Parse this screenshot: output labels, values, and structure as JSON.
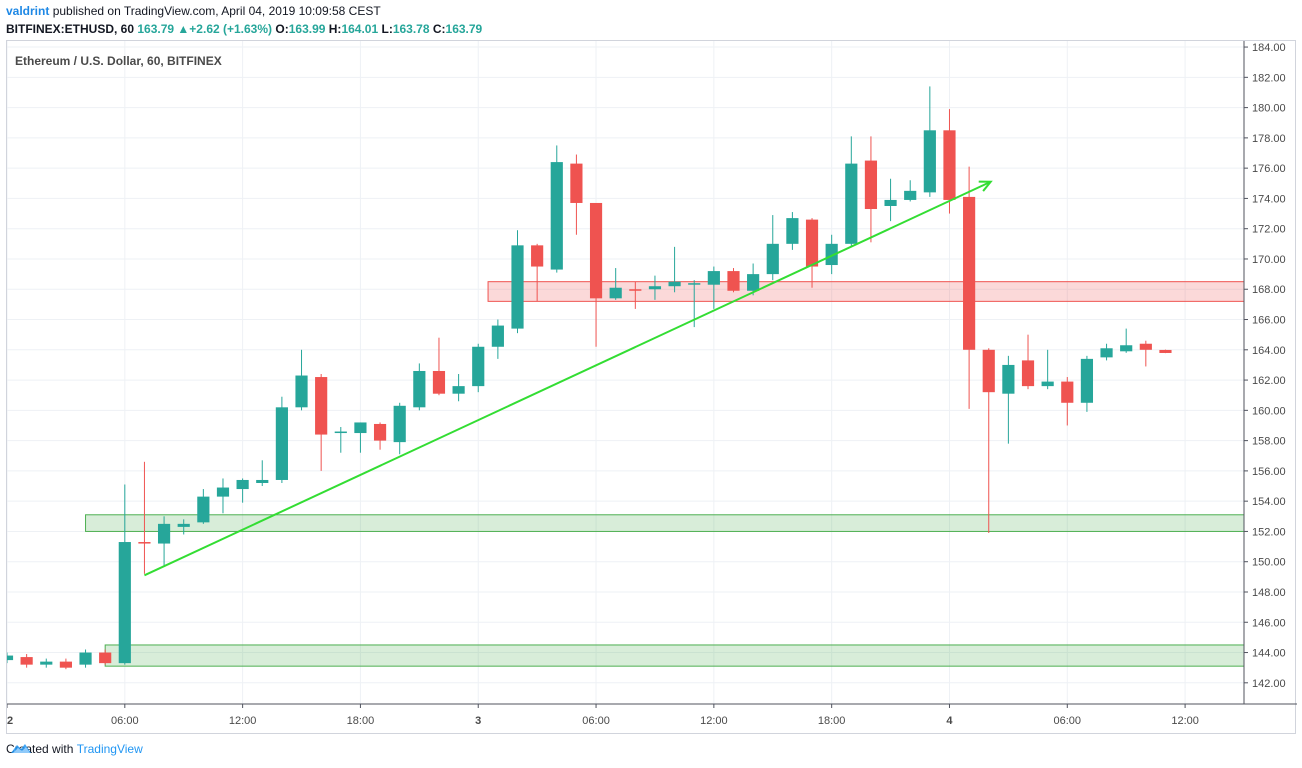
{
  "header": {
    "author": "valdrint",
    "published_text": "published on TradingView.com, April 04, 2019 10:09:58 CEST"
  },
  "ohlc_line": {
    "symbol": "BITFINEX:ETHUSD, 60",
    "last": "163.79",
    "change": "+2.62 (+1.63%)",
    "o_label": "O:",
    "o": "163.99",
    "h_label": "H:",
    "h": "164.01",
    "l_label": "L:",
    "l": "163.78",
    "c_label": "C:",
    "c": "163.79"
  },
  "footer": {
    "created_with": "Created with",
    "brand": "TradingView"
  },
  "colors": {
    "up": "#26a69a",
    "down": "#ef5350",
    "support": "#4caf50",
    "resistance": "#ef5350",
    "trend": "#33dd33"
  },
  "chart_data": {
    "type": "candlestick",
    "title": "Ethereum / U.S. Dollar, 60, BITFINEX",
    "ylim": [
      140.6,
      184.4
    ],
    "y_ticks": [
      142,
      144,
      146,
      148,
      150,
      152,
      154,
      156,
      158,
      160,
      162,
      164,
      166,
      168,
      170,
      172,
      174,
      176,
      178,
      180,
      182,
      184
    ],
    "x_range": [
      0,
      63
    ],
    "x_ticks": [
      {
        "i": 0,
        "label": "2"
      },
      {
        "i": 6,
        "label": "06:00"
      },
      {
        "i": 12,
        "label": "12:00"
      },
      {
        "i": 18,
        "label": "18:00"
      },
      {
        "i": 24,
        "label": "3"
      },
      {
        "i": 30,
        "label": "06:00"
      },
      {
        "i": 36,
        "label": "12:00"
      },
      {
        "i": 42,
        "label": "18:00"
      },
      {
        "i": 48,
        "label": "4"
      },
      {
        "i": 54,
        "label": "06:00"
      },
      {
        "i": 60,
        "label": "12:00"
      }
    ],
    "candles": [
      {
        "o": 143.5,
        "h": 144.0,
        "l": 143.3,
        "c": 143.8
      },
      {
        "o": 143.7,
        "h": 143.9,
        "l": 143.0,
        "c": 143.2
      },
      {
        "o": 143.2,
        "h": 143.6,
        "l": 143.0,
        "c": 143.4
      },
      {
        "o": 143.4,
        "h": 143.6,
        "l": 142.9,
        "c": 143.0
      },
      {
        "o": 143.2,
        "h": 144.2,
        "l": 143.0,
        "c": 144.0
      },
      {
        "o": 144.0,
        "h": 144.2,
        "l": 143.2,
        "c": 143.3
      },
      {
        "o": 143.3,
        "h": 155.1,
        "l": 143.2,
        "c": 151.3
      },
      {
        "o": 151.3,
        "h": 156.6,
        "l": 149.2,
        "c": 151.2
      },
      {
        "o": 151.2,
        "h": 153.0,
        "l": 149.7,
        "c": 152.5
      },
      {
        "o": 152.3,
        "h": 152.8,
        "l": 151.8,
        "c": 152.5
      },
      {
        "o": 152.6,
        "h": 154.8,
        "l": 152.5,
        "c": 154.3
      },
      {
        "o": 154.3,
        "h": 155.5,
        "l": 153.2,
        "c": 154.9
      },
      {
        "o": 154.8,
        "h": 155.5,
        "l": 153.9,
        "c": 155.4
      },
      {
        "o": 155.2,
        "h": 156.7,
        "l": 155.0,
        "c": 155.4
      },
      {
        "o": 155.4,
        "h": 160.9,
        "l": 155.2,
        "c": 160.2
      },
      {
        "o": 160.2,
        "h": 164.0,
        "l": 160.0,
        "c": 162.3
      },
      {
        "o": 162.2,
        "h": 162.4,
        "l": 156.0,
        "c": 158.4
      },
      {
        "o": 158.5,
        "h": 158.9,
        "l": 157.2,
        "c": 158.6
      },
      {
        "o": 158.5,
        "h": 159.2,
        "l": 157.2,
        "c": 159.2
      },
      {
        "o": 159.1,
        "h": 159.2,
        "l": 157.4,
        "c": 158.0
      },
      {
        "o": 157.9,
        "h": 160.5,
        "l": 157.1,
        "c": 160.3
      },
      {
        "o": 160.2,
        "h": 163.1,
        "l": 160.0,
        "c": 162.6
      },
      {
        "o": 162.6,
        "h": 164.8,
        "l": 161.0,
        "c": 161.1
      },
      {
        "o": 161.1,
        "h": 162.4,
        "l": 160.6,
        "c": 161.6
      },
      {
        "o": 161.6,
        "h": 164.4,
        "l": 161.2,
        "c": 164.2
      },
      {
        "o": 164.2,
        "h": 166.0,
        "l": 163.4,
        "c": 165.6
      },
      {
        "o": 165.4,
        "h": 171.9,
        "l": 165.1,
        "c": 170.9
      },
      {
        "o": 170.9,
        "h": 171.0,
        "l": 167.2,
        "c": 169.5
      },
      {
        "o": 169.3,
        "h": 177.5,
        "l": 169.1,
        "c": 176.4
      },
      {
        "o": 176.3,
        "h": 176.9,
        "l": 171.6,
        "c": 173.7
      },
      {
        "o": 173.7,
        "h": 173.7,
        "l": 164.2,
        "c": 167.4
      },
      {
        "o": 167.4,
        "h": 169.4,
        "l": 167.3,
        "c": 168.1
      },
      {
        "o": 168.0,
        "h": 168.5,
        "l": 166.7,
        "c": 167.9
      },
      {
        "o": 168.0,
        "h": 168.9,
        "l": 167.3,
        "c": 168.2
      },
      {
        "o": 168.2,
        "h": 170.8,
        "l": 167.8,
        "c": 168.5
      },
      {
        "o": 168.4,
        "h": 168.6,
        "l": 165.5,
        "c": 168.4
      },
      {
        "o": 168.3,
        "h": 169.5,
        "l": 166.7,
        "c": 169.2
      },
      {
        "o": 169.2,
        "h": 169.4,
        "l": 167.8,
        "c": 167.9
      },
      {
        "o": 167.9,
        "h": 169.7,
        "l": 167.6,
        "c": 169.0
      },
      {
        "o": 169.0,
        "h": 172.9,
        "l": 168.6,
        "c": 171.0
      },
      {
        "o": 171.0,
        "h": 173.1,
        "l": 170.6,
        "c": 172.7
      },
      {
        "o": 172.6,
        "h": 172.7,
        "l": 168.1,
        "c": 169.5
      },
      {
        "o": 169.6,
        "h": 171.6,
        "l": 169.0,
        "c": 171.0
      },
      {
        "o": 171.0,
        "h": 178.1,
        "l": 170.8,
        "c": 176.3
      },
      {
        "o": 176.5,
        "h": 178.1,
        "l": 171.1,
        "c": 173.3
      },
      {
        "o": 173.5,
        "h": 175.3,
        "l": 172.5,
        "c": 173.9
      },
      {
        "o": 173.9,
        "h": 175.2,
        "l": 173.8,
        "c": 174.5
      },
      {
        "o": 174.4,
        "h": 181.4,
        "l": 174.1,
        "c": 178.5
      },
      {
        "o": 178.5,
        "h": 179.9,
        "l": 173.0,
        "c": 173.9
      },
      {
        "o": 174.1,
        "h": 176.1,
        "l": 160.1,
        "c": 164.0
      },
      {
        "o": 164.0,
        "h": 164.1,
        "l": 151.9,
        "c": 161.2
      },
      {
        "o": 161.1,
        "h": 163.6,
        "l": 157.8,
        "c": 163.0
      },
      {
        "o": 163.3,
        "h": 165.0,
        "l": 161.4,
        "c": 161.6
      },
      {
        "o": 161.6,
        "h": 164.0,
        "l": 161.4,
        "c": 161.9
      },
      {
        "o": 161.9,
        "h": 162.2,
        "l": 159.0,
        "c": 160.5
      },
      {
        "o": 160.5,
        "h": 163.6,
        "l": 159.9,
        "c": 163.4
      },
      {
        "o": 163.5,
        "h": 164.4,
        "l": 163.3,
        "c": 164.1
      },
      {
        "o": 163.9,
        "h": 165.4,
        "l": 163.8,
        "c": 164.3
      },
      {
        "o": 164.4,
        "h": 164.6,
        "l": 162.9,
        "c": 164.0
      },
      {
        "o": 163.99,
        "h": 164.01,
        "l": 163.78,
        "c": 163.79
      }
    ],
    "zones": [
      {
        "kind": "resistance",
        "from_i": 24.5,
        "y_low": 167.2,
        "y_high": 168.5
      },
      {
        "kind": "support",
        "from_i": 4,
        "y_low": 152.0,
        "y_high": 153.1
      },
      {
        "kind": "support",
        "from_i": 5,
        "y_low": 143.1,
        "y_high": 144.5
      }
    ],
    "trendline": {
      "x1": 7,
      "y1": 149.1,
      "x2": 50.1,
      "y2": 175.1
    }
  }
}
